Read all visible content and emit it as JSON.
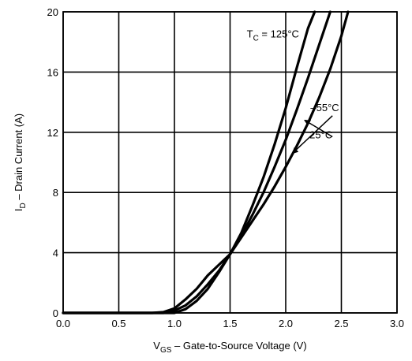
{
  "chart_data": {
    "type": "line",
    "title": "",
    "xlabel": {
      "main": "V",
      "subscript": "GS",
      "rest": " – Gate-to-Source Voltage (V)"
    },
    "ylabel": {
      "main": "I",
      "subscript": "D",
      "rest": " – Drain Current (A)"
    },
    "xlim": [
      0,
      3
    ],
    "ylim": [
      0,
      20
    ],
    "xticks": [
      0,
      0.5,
      1,
      1.5,
      2,
      2.5,
      3
    ],
    "xtick_labels": [
      "0.0",
      "0.5",
      "1.0",
      "1.5",
      "2.0",
      "2.5",
      "3.0"
    ],
    "yticks": [
      0,
      4,
      8,
      12,
      16,
      20
    ],
    "ytick_labels": [
      "0",
      "4",
      "8",
      "12",
      "16",
      "20"
    ],
    "grid": true,
    "legend": "none",
    "line_color": "#000000",
    "series": [
      {
        "name": "125°C",
        "x": [
          0.0,
          0.8,
          0.9,
          1.0,
          1.1,
          1.2,
          1.3,
          1.4,
          1.5,
          1.6,
          1.7,
          1.8,
          1.9,
          2.0,
          2.1,
          2.2,
          2.26
        ],
        "y": [
          0.0,
          0.0,
          0.05,
          0.3,
          0.9,
          1.6,
          2.5,
          3.2,
          3.9,
          5.3,
          7.1,
          9.0,
          11.2,
          13.6,
          16.3,
          18.9,
          20.0
        ]
      },
      {
        "name": "25°C",
        "x": [
          0.0,
          0.9,
          1.0,
          1.1,
          1.2,
          1.3,
          1.4,
          1.5,
          1.6,
          1.7,
          1.8,
          1.9,
          2.0,
          2.1,
          2.2,
          2.3,
          2.4
        ],
        "y": [
          0.0,
          0.0,
          0.15,
          0.5,
          1.1,
          1.9,
          2.8,
          3.9,
          5.1,
          6.5,
          8.0,
          9.7,
          11.5,
          13.5,
          15.6,
          17.8,
          20.0
        ]
      },
      {
        "name": "–55°C",
        "x": [
          0.0,
          1.0,
          1.1,
          1.2,
          1.3,
          1.4,
          1.5,
          1.6,
          1.7,
          1.8,
          1.9,
          2.0,
          2.1,
          2.2,
          2.3,
          2.4,
          2.5,
          2.56
        ],
        "y": [
          0.0,
          0.0,
          0.25,
          0.8,
          1.6,
          2.7,
          3.9,
          5.0,
          6.1,
          7.2,
          8.4,
          9.7,
          11.1,
          12.6,
          14.3,
          16.2,
          18.4,
          20.0
        ]
      }
    ],
    "annotations": [
      {
        "id": "tc125",
        "prefix": "T",
        "subscript": "C",
        "text": " = 125°C",
        "x": 2.12,
        "y": 18.3
      },
      {
        "id": "tm55",
        "text": "–55°C",
        "x": 2.48,
        "y": 13.4
      },
      {
        "id": "t25",
        "text": "25°C",
        "x": 2.42,
        "y": 11.6
      }
    ],
    "arrows": [
      {
        "id": "arrow-tm55",
        "from_x": 2.42,
        "from_y": 13.1,
        "to_x": 2.06,
        "to_y": 10.6
      },
      {
        "id": "arrow-t25",
        "from_x": 2.42,
        "from_y": 11.7,
        "to_x": 2.17,
        "to_y": 12.8
      }
    ]
  }
}
